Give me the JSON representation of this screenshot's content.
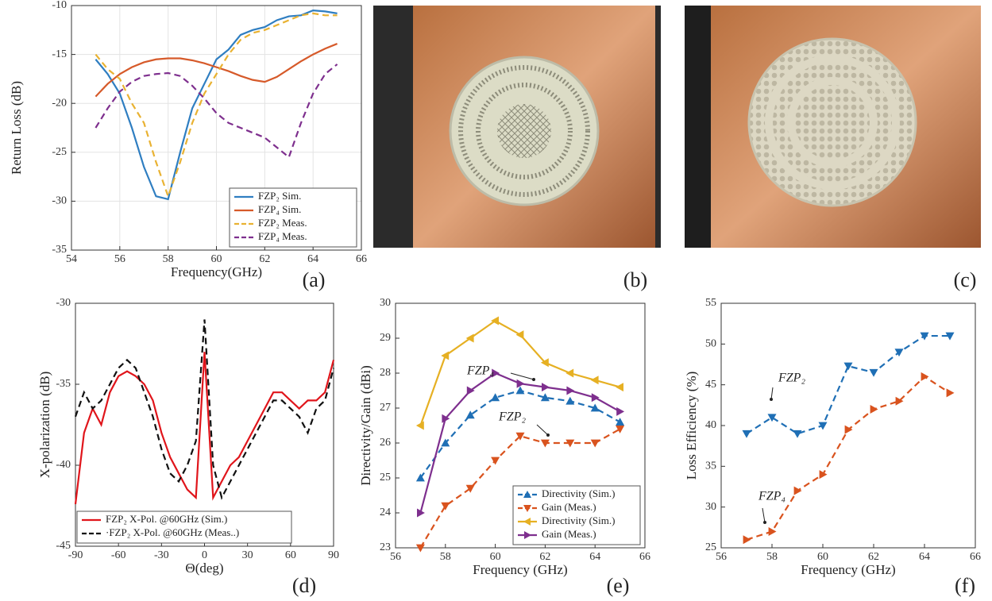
{
  "chart_data": [
    {
      "type": "line",
      "label": "(a)",
      "x_label": "Frequency(GHz)",
      "y_label": "Return Loss (dB)",
      "xlim": [
        54,
        66
      ],
      "xticks": [
        54,
        56,
        58,
        60,
        62,
        64,
        66
      ],
      "ylim": [
        -35,
        -10
      ],
      "yticks": [
        -35,
        -30,
        -25,
        -20,
        -15,
        -10
      ],
      "grid": true,
      "legend": "lower right",
      "x": [
        55,
        55.5,
        56,
        56.5,
        57,
        57.5,
        58,
        58.5,
        59,
        59.5,
        60,
        60.5,
        61,
        61.5,
        62,
        62.5,
        63,
        63.5,
        64,
        64.5,
        65
      ],
      "series": [
        {
          "name": "FZP₂ Sim.",
          "color": "#2f7ec1",
          "dashed": false,
          "values": [
            -15.5,
            -17,
            -19,
            -22.5,
            -26.5,
            -29.5,
            -29.8,
            -25,
            -20.5,
            -18,
            -15.5,
            -14.5,
            -13,
            -12.5,
            -12.2,
            -11.5,
            -11.1,
            -11,
            -10.5,
            -10.6,
            -10.8
          ]
        },
        {
          "name": "FZP₄ Sim.",
          "color": "#d65a2a",
          "dashed": false,
          "values": [
            -19.3,
            -18,
            -17,
            -16.3,
            -15.8,
            -15.5,
            -15.4,
            -15.4,
            -15.6,
            -15.9,
            -16.3,
            -16.7,
            -17.2,
            -17.6,
            -17.8,
            -17.3,
            -16.5,
            -15.7,
            -15,
            -14.4,
            -13.9
          ]
        },
        {
          "name": "FZP₂ Meas.",
          "color": "#e9b232",
          "dashed": true,
          "values": [
            -15,
            -16.5,
            -17.5,
            -20,
            -22,
            -26,
            -29.5,
            -26,
            -22,
            -19,
            -17,
            -15,
            -13.5,
            -12.8,
            -12.5,
            -12,
            -11.5,
            -11,
            -10.8,
            -11,
            -11
          ]
        },
        {
          "name": "FZP₄ Meas.",
          "color": "#7e2f8e",
          "dashed": true,
          "values": [
            -22.5,
            -20.5,
            -18.8,
            -17.8,
            -17.2,
            -17,
            -16.9,
            -17.2,
            -18.2,
            -19.5,
            -21,
            -22,
            -22.5,
            -23,
            -23.5,
            -24.5,
            -25.5,
            -22,
            -19,
            -17,
            -16
          ]
        }
      ]
    },
    {
      "type": "line",
      "label": "(d)",
      "x_label": "Θ(deg)",
      "y_label": "X-polarization (dB)",
      "xlim": [
        -90,
        90
      ],
      "xticks": [
        -90,
        -60,
        -30,
        0,
        30,
        60,
        90
      ],
      "ylim": [
        -45,
        -30
      ],
      "yticks": [
        -45,
        -40,
        -35,
        -30
      ],
      "grid": false,
      "legend": "lower left",
      "x": [
        -90,
        -84,
        -78,
        -72,
        -66,
        -60,
        -54,
        -48,
        -42,
        -36,
        -30,
        -24,
        -18,
        -12,
        -6,
        0,
        6,
        12,
        18,
        24,
        30,
        36,
        42,
        48,
        54,
        60,
        66,
        72,
        78,
        84,
        90
      ],
      "series": [
        {
          "name": "FZP₂ X-Pol. @60GHz (Sim.)",
          "color": "#e0151b",
          "dashed": false,
          "values": [
            -42.4,
            -38,
            -36.5,
            -37.5,
            -35.5,
            -34.5,
            -34.2,
            -34.5,
            -35,
            -36,
            -38,
            -39.5,
            -40.5,
            -41.5,
            -42,
            -33,
            -42,
            -41,
            -40,
            -39.5,
            -38.5,
            -37.5,
            -36.5,
            -35.5,
            -35.5,
            -36,
            -36.5,
            -36,
            -36,
            -35.5,
            -33.5
          ]
        },
        {
          "name": "·FZP₂ X-Pol. @60GHz (Meas..)",
          "color": "#111111",
          "dashed": true,
          "values": [
            -37,
            -35.5,
            -36.5,
            -36,
            -35,
            -34,
            -33.5,
            -34,
            -35.5,
            -37,
            -39,
            -40.5,
            -41,
            -40,
            -38.5,
            -31,
            -40,
            -42,
            -41,
            -40,
            -39,
            -38,
            -37,
            -36,
            -36,
            -36.5,
            -37,
            -38,
            -36.5,
            -36,
            -34
          ]
        }
      ]
    },
    {
      "type": "line",
      "label": "(e)",
      "x_label": "Frequency (GHz)",
      "y_label": "Directivity/Gain (dBi)",
      "xlim": [
        56,
        66
      ],
      "xticks": [
        56,
        58,
        60,
        62,
        64,
        66
      ],
      "ylim": [
        23,
        30
      ],
      "yticks": [
        23,
        24,
        25,
        26,
        27,
        28,
        29,
        30
      ],
      "grid": false,
      "legend": "lower right",
      "x": [
        57,
        58,
        59,
        60,
        61,
        62,
        63,
        64,
        65
      ],
      "annotations": [
        "FZP₄",
        "FZP₂"
      ],
      "series": [
        {
          "name": "Directivity (Sim.)",
          "color": "#1f6fb5",
          "dashed": true,
          "marker": "up",
          "values": [
            25,
            26,
            26.8,
            27.3,
            27.5,
            27.3,
            27.2,
            27,
            26.6
          ]
        },
        {
          "name": "Gain (Meas.)",
          "color": "#d9531e",
          "dashed": true,
          "marker": "down",
          "values": [
            23,
            24.2,
            24.7,
            25.5,
            26.2,
            26,
            26,
            26,
            26.4
          ]
        },
        {
          "name": "Directivity (Sim.)",
          "color": "#e6b023",
          "dashed": false,
          "marker": "left",
          "values": [
            26.5,
            28.5,
            29,
            29.5,
            29.1,
            28.3,
            28,
            27.8,
            27.6
          ]
        },
        {
          "name": "Gain (Meas.)",
          "color": "#7e2f8e",
          "dashed": false,
          "marker": "right",
          "values": [
            24,
            26.7,
            27.5,
            28,
            27.7,
            27.6,
            27.5,
            27.3,
            26.9
          ]
        }
      ]
    },
    {
      "type": "line",
      "label": "(f)",
      "x_label": "Frequency (GHz)",
      "y_label": "Loss Efficiency (%)",
      "xlim": [
        56,
        66
      ],
      "xticks": [
        56,
        58,
        60,
        62,
        64,
        66
      ],
      "ylim": [
        25,
        55
      ],
      "yticks": [
        25,
        30,
        35,
        40,
        45,
        50,
        55
      ],
      "grid": false,
      "x": [
        57,
        58,
        59,
        60,
        61,
        62,
        63,
        64,
        65
      ],
      "annotations": [
        "FZP₂",
        "FZP₄"
      ],
      "series": [
        {
          "color": "#1f6fb5",
          "dashed": true,
          "marker": "down",
          "values": [
            39,
            41,
            39,
            40,
            47.3,
            46.5,
            49,
            51,
            51
          ]
        },
        {
          "color": "#d9531e",
          "dashed": true,
          "marker": "right",
          "values": [
            26,
            27,
            32,
            34,
            39.5,
            42,
            43,
            46,
            44
          ]
        }
      ]
    }
  ],
  "photos": [
    {
      "label": "(b)"
    },
    {
      "label": "(c)"
    }
  ]
}
